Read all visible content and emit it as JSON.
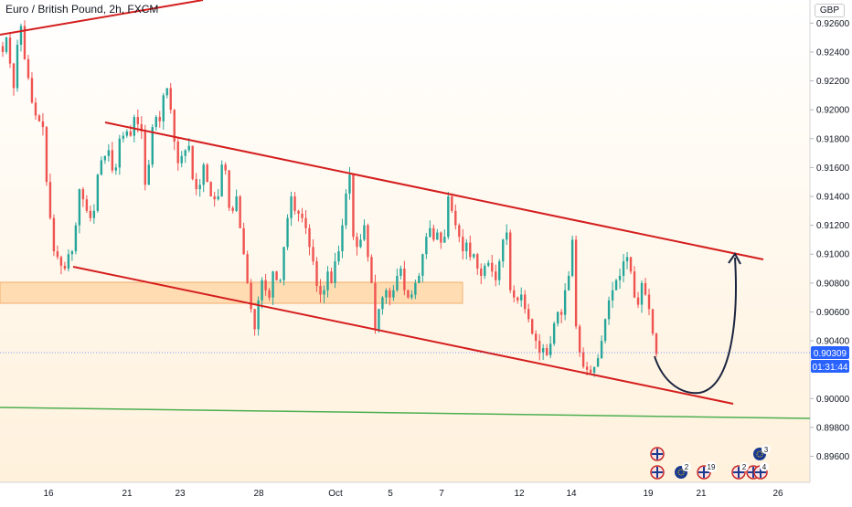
{
  "header": {
    "title": "Euro / British Pound, 2h, FXCM",
    "currency": "GBP"
  },
  "price_tag": {
    "price": "0.90309",
    "countdown": "01:31:44"
  },
  "colors": {
    "up": "#26a69a",
    "down": "#ef5350",
    "channel": "#d41e1e",
    "support": "#4caf50",
    "zone": "#ffe0b2",
    "tag": "#2962ff"
  },
  "chart_data": {
    "type": "candlestick",
    "timeframe": "2h",
    "x_ticks": [
      "16",
      "21",
      "23",
      "28",
      "Oct",
      "5",
      "7",
      "12",
      "14",
      "19",
      "21",
      "26"
    ],
    "y_ticks": [
      "0.92600",
      "0.92400",
      "0.92200",
      "0.92000",
      "0.91800",
      "0.91600",
      "0.91400",
      "0.91200",
      "0.91000",
      "0.90800",
      "0.90600",
      "0.90400",
      "0.90000",
      "0.89800",
      "0.89600"
    ],
    "ylim": [
      0.8942,
      0.9276
    ],
    "last_price": 0.90309,
    "candle_closes": [
      0.924,
      0.925,
      0.9232,
      0.9215,
      0.9245,
      0.9258,
      0.9235,
      0.9222,
      0.9205,
      0.9196,
      0.9192,
      0.9188,
      0.915,
      0.9125,
      0.9102,
      0.9098,
      0.9092,
      0.909,
      0.91,
      0.9102,
      0.912,
      0.9145,
      0.9138,
      0.913,
      0.9125,
      0.913,
      0.9155,
      0.9165,
      0.9168,
      0.9172,
      0.9158,
      0.916,
      0.918,
      0.9182,
      0.9185,
      0.9182,
      0.9195,
      0.919,
      0.9185,
      0.9148,
      0.9162,
      0.9188,
      0.9195,
      0.9192,
      0.921,
      0.9215,
      0.92,
      0.9178,
      0.9163,
      0.9168,
      0.9172,
      0.9175,
      0.9152,
      0.9145,
      0.9148,
      0.9162,
      0.915,
      0.914,
      0.9138,
      0.914,
      0.9162,
      0.9158,
      0.9132,
      0.913,
      0.914,
      0.9118,
      0.91,
      0.908,
      0.9062,
      0.9048,
      0.9068,
      0.9082,
      0.9075,
      0.907,
      0.9088,
      0.9082,
      0.9082,
      0.9105,
      0.9125,
      0.914,
      0.913,
      0.9128,
      0.9125,
      0.9118,
      0.9105,
      0.9095,
      0.9078,
      0.9072,
      0.9075,
      0.9088,
      0.908,
      0.9095,
      0.9102,
      0.912,
      0.9142,
      0.9155,
      0.9112,
      0.9105,
      0.911,
      0.912,
      0.9098,
      0.908,
      0.9048,
      0.9062,
      0.907,
      0.9075,
      0.907,
      0.9075,
      0.9085,
      0.909,
      0.9075,
      0.907,
      0.9072,
      0.908,
      0.9085,
      0.91,
      0.9112,
      0.9118,
      0.911,
      0.9115,
      0.9108,
      0.9112,
      0.914,
      0.913,
      0.912,
      0.9112,
      0.9102,
      0.9108,
      0.9098,
      0.91,
      0.909,
      0.9085,
      0.9092,
      0.9094,
      0.9088,
      0.9082,
      0.9095,
      0.911,
      0.9115,
      0.9075,
      0.907,
      0.9068,
      0.9072,
      0.9062,
      0.9055,
      0.9045,
      0.904,
      0.9032,
      0.9035,
      0.903,
      0.9038,
      0.9052,
      0.906,
      0.9058,
      0.9075,
      0.9085,
      0.911,
      0.905,
      0.9032,
      0.9022,
      0.902,
      0.9018,
      0.9022,
      0.9028,
      0.904,
      0.9055,
      0.9068,
      0.9075,
      0.9082,
      0.9085,
      0.9095,
      0.9098,
      0.9088,
      0.907,
      0.9065,
      0.908,
      0.9072,
      0.9062,
      0.9045,
      0.90309
    ]
  }
}
